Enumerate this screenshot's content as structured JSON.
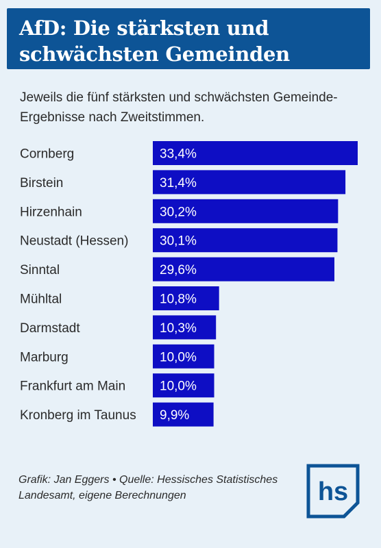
{
  "header": {
    "title": "AfD: Die stärksten und schwächsten Gemeinden"
  },
  "subtitle": "Jeweils die fünf stärksten und schwächsten Gemeinde-Ergebnisse nach Zweitstimmen.",
  "footer": {
    "credit": "Grafik: Jan Eggers • Quelle: Hessisches Statistisches Landesamt, eigene Berechnungen"
  },
  "logo": {
    "text": "hs",
    "color": "#0d5496"
  },
  "colors": {
    "bar": "#0e0ec4",
    "background": "#e8f1f8",
    "header": "#0d5496"
  },
  "chart_data": {
    "type": "bar",
    "orientation": "horizontal",
    "categories": [
      "Cornberg",
      "Birstein",
      "Hirzenhain",
      "Neustadt (Hessen)",
      "Sinntal",
      "Mühltal",
      "Darmstadt",
      "Marburg",
      "Frankfurt am Main",
      "Kronberg im Taunus"
    ],
    "values": [
      33.4,
      31.4,
      30.2,
      30.1,
      29.6,
      10.8,
      10.3,
      10.0,
      10.0,
      9.9
    ],
    "value_labels": [
      "33,4%",
      "31,4%",
      "30,2%",
      "30,1%",
      "29,6%",
      "10,8%",
      "10,3%",
      "10,0%",
      "10,0%",
      "9,9%"
    ],
    "unit": "%",
    "xlim": [
      0,
      33.4
    ],
    "grid": false,
    "legend": "none"
  }
}
